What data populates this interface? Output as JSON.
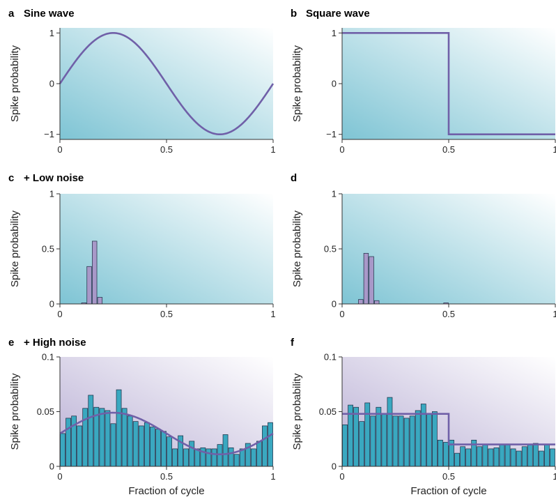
{
  "colors": {
    "line": "#7060a8",
    "bar_fill_purple": "#a898c8",
    "bar_fill_teal": "#3aa8c0",
    "bg_teal": "#7ec4d4",
    "bg_purple": "#b8aed4"
  },
  "chart_data": [
    {
      "id": "a",
      "letter": "a",
      "title": "Sine wave",
      "type": "line",
      "ylabel": "Spike probability",
      "xlabel": "",
      "xlim": [
        0,
        1
      ],
      "ylim": [
        -1.1,
        1.1
      ],
      "xticks": [
        0,
        0.5,
        1
      ],
      "xticklabels": [
        "0",
        "0.5",
        "1"
      ],
      "yticks": [
        -1,
        0,
        1
      ],
      "yticklabels": [
        "−1",
        "0",
        "1"
      ],
      "background": "teal",
      "line": {
        "kind": "sine",
        "amplitude": 1,
        "offset": 0
      }
    },
    {
      "id": "b",
      "letter": "b",
      "title": "Square wave",
      "type": "line",
      "ylabel": "Spike probability",
      "xlabel": "",
      "xlim": [
        0,
        1
      ],
      "ylim": [
        -1.1,
        1.1
      ],
      "xticks": [
        0,
        0.5,
        1
      ],
      "xticklabels": [
        "0",
        "0.5",
        "1"
      ],
      "yticks": [
        -1,
        0,
        1
      ],
      "yticklabels": [
        "−1",
        "0",
        "1"
      ],
      "background": "teal",
      "line": {
        "kind": "square",
        "high": 1,
        "low": -1,
        "switch": 0.5
      }
    },
    {
      "id": "c",
      "letter": "c",
      "title": "+ Low noise",
      "type": "bar",
      "ylabel": "Spike probability",
      "xlabel": "",
      "xlim": [
        0,
        1
      ],
      "ylim": [
        0,
        1
      ],
      "xticks": [
        0,
        0.5,
        1
      ],
      "xticklabels": [
        "0",
        "0.5",
        "1"
      ],
      "yticks": [
        0,
        0.5,
        1
      ],
      "yticklabels": [
        "0",
        "0.5",
        "1"
      ],
      "background": "teal",
      "bins": 40,
      "bar_color": "purple",
      "values": [
        0,
        0,
        0,
        0,
        0.01,
        0.34,
        0.57,
        0.06,
        0,
        0,
        0,
        0,
        0,
        0,
        0,
        0,
        0,
        0,
        0,
        0,
        0,
        0,
        0,
        0,
        0,
        0,
        0,
        0,
        0,
        0,
        0,
        0,
        0,
        0,
        0,
        0,
        0,
        0,
        0,
        0
      ]
    },
    {
      "id": "d",
      "letter": "d",
      "title": "",
      "type": "bar",
      "ylabel": "Spike probability",
      "xlabel": "",
      "xlim": [
        0,
        1
      ],
      "ylim": [
        0,
        1
      ],
      "xticks": [
        0,
        0.5,
        1
      ],
      "xticklabels": [
        "0",
        "0.5",
        "1"
      ],
      "yticks": [
        0,
        0.5,
        1
      ],
      "yticklabels": [
        "0",
        "0.5",
        "1"
      ],
      "background": "teal",
      "bins": 40,
      "bar_color": "purple",
      "values": [
        0,
        0,
        0,
        0.04,
        0.46,
        0.43,
        0.03,
        0,
        0,
        0,
        0,
        0,
        0,
        0,
        0,
        0,
        0,
        0,
        0,
        0.01,
        0,
        0,
        0,
        0,
        0,
        0,
        0,
        0,
        0,
        0,
        0,
        0,
        0,
        0,
        0,
        0,
        0,
        0,
        0,
        0
      ]
    },
    {
      "id": "e",
      "letter": "e",
      "title": "+ High noise",
      "type": "bar",
      "ylabel": "Spike probability",
      "xlabel": "Fraction of cycle",
      "xlim": [
        0,
        1
      ],
      "ylim": [
        0,
        0.1
      ],
      "xticks": [
        0,
        0.5,
        1
      ],
      "xticklabels": [
        "0",
        "0.5",
        "1"
      ],
      "yticks": [
        0,
        0.05,
        0.1
      ],
      "yticklabels": [
        "0",
        "0.05",
        "0.1"
      ],
      "background": "purple",
      "bins": 38,
      "bar_color": "teal",
      "values": [
        0.03,
        0.044,
        0.046,
        0.037,
        0.053,
        0.065,
        0.054,
        0.053,
        0.051,
        0.039,
        0.07,
        0.053,
        0.046,
        0.041,
        0.037,
        0.04,
        0.036,
        0.034,
        0.032,
        0.027,
        0.016,
        0.028,
        0.016,
        0.023,
        0.016,
        0.017,
        0.016,
        0.016,
        0.02,
        0.029,
        0.017,
        0.011,
        0.016,
        0.021,
        0.016,
        0.023,
        0.037,
        0.04
      ],
      "line": {
        "kind": "sine",
        "amplitude": 0.019,
        "offset": 0.03
      }
    },
    {
      "id": "f",
      "letter": "f",
      "title": "",
      "type": "bar",
      "ylabel": "Spike probability",
      "xlabel": "Fraction of cycle",
      "xlim": [
        0,
        1
      ],
      "ylim": [
        0,
        0.1
      ],
      "xticks": [
        0,
        0.5,
        1
      ],
      "xticklabels": [
        "0",
        "0.5",
        "1"
      ],
      "yticks": [
        0,
        0.05,
        0.1
      ],
      "yticklabels": [
        "0",
        "0.05",
        "0.1"
      ],
      "background": "purple",
      "bins": 38,
      "bar_color": "teal",
      "values": [
        0.038,
        0.056,
        0.054,
        0.041,
        0.058,
        0.046,
        0.054,
        0.048,
        0.063,
        0.046,
        0.046,
        0.044,
        0.046,
        0.051,
        0.057,
        0.048,
        0.05,
        0.024,
        0.022,
        0.024,
        0.012,
        0.018,
        0.016,
        0.024,
        0.018,
        0.02,
        0.016,
        0.017,
        0.02,
        0.02,
        0.016,
        0.014,
        0.018,
        0.02,
        0.021,
        0.014,
        0.02,
        0.016
      ],
      "line": {
        "kind": "square",
        "high": 0.048,
        "low": 0.02,
        "switch": 0.5
      }
    }
  ]
}
